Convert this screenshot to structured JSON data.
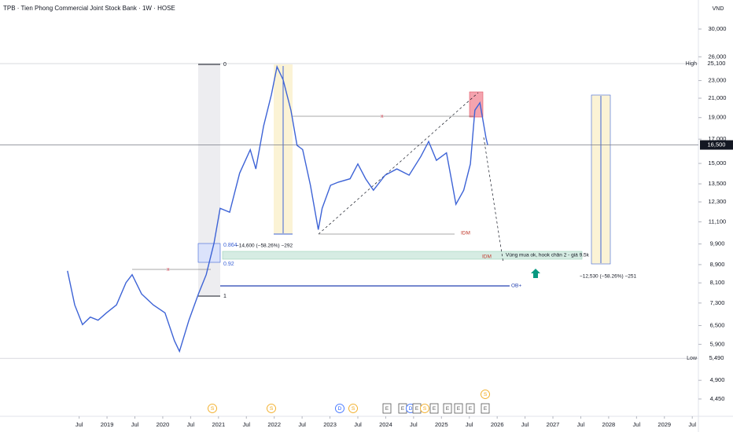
{
  "chart_data": {
    "type": "line",
    "title": "TPB · Tien Phong Commercial Joint Stock Bank · 1W · HOSE",
    "currency": "VND",
    "color": "#3d63d6",
    "log_scale": true,
    "grid": false,
    "x": [
      2018.29,
      2018.42,
      2018.56,
      2018.7,
      2018.84,
      2018.99,
      2019.17,
      2019.34,
      2019.45,
      2019.62,
      2019.83,
      2020.04,
      2020.21,
      2020.3,
      2020.47,
      2020.64,
      2020.78,
      2020.92,
      2021.03,
      2021.2,
      2021.38,
      2021.57,
      2021.67,
      2021.81,
      2021.95,
      2022.05,
      2022.16,
      2022.3,
      2022.41,
      2022.51,
      2022.65,
      2022.79,
      2022.86,
      2023.01,
      2023.15,
      2023.36,
      2023.5,
      2023.64,
      2023.78,
      2023.99,
      2024.2,
      2024.42,
      2024.63,
      2024.77,
      2024.91,
      2025.09,
      2025.19,
      2025.26,
      2025.4,
      2025.52,
      2025.6,
      2025.69,
      2025.8,
      2025.83
    ],
    "values": [
      8620,
      7230,
      6530,
      6790,
      6680,
      6940,
      7230,
      8110,
      8450,
      7650,
      7230,
      6940,
      6010,
      5690,
      6680,
      7650,
      8450,
      9940,
      11900,
      11660,
      14270,
      16100,
      14580,
      18200,
      21400,
      24700,
      23090,
      19740,
      16460,
      16110,
      13400,
      10660,
      11900,
      13400,
      13620,
      13860,
      14960,
      13860,
      13060,
      14120,
      14580,
      14120,
      15550,
      16800,
      15240,
      15840,
      13560,
      12150,
      13060,
      14960,
      19740,
      20510,
      17090,
      16500
    ],
    "xlim": [
      2017.08,
      2029.61
    ],
    "xticks": [
      {
        "value": 2018.5,
        "label": "Jul"
      },
      {
        "value": 2019,
        "label": "2019"
      },
      {
        "value": 2019.5,
        "label": "Jul"
      },
      {
        "value": 2020,
        "label": "2020"
      },
      {
        "value": 2020.5,
        "label": "Jul"
      },
      {
        "value": 2021,
        "label": "2021"
      },
      {
        "value": 2021.5,
        "label": "Jul"
      },
      {
        "value": 2022,
        "label": "2022"
      },
      {
        "value": 2022.5,
        "label": "Jul"
      },
      {
        "value": 2023,
        "label": "2023"
      },
      {
        "value": 2023.5,
        "label": "Jul"
      },
      {
        "value": 2024,
        "label": "2024"
      },
      {
        "value": 2024.5,
        "label": "Jul"
      },
      {
        "value": 2025,
        "label": "2025"
      },
      {
        "value": 2025.5,
        "label": "Jul"
      },
      {
        "value": 2026,
        "label": "2026"
      },
      {
        "value": 2026.5,
        "label": "Jul"
      },
      {
        "value": 2027,
        "label": "2027"
      },
      {
        "value": 2027.5,
        "label": "Jul"
      },
      {
        "value": 2028,
        "label": "2028"
      },
      {
        "value": 2028.5,
        "label": "Jul"
      },
      {
        "value": 2029,
        "label": "2029"
      },
      {
        "value": 2029.5,
        "label": "Jul"
      }
    ],
    "ylim": [
      4070,
      34850
    ],
    "yticks": [
      {
        "value": 4450,
        "label": "4,450"
      },
      {
        "value": 4900,
        "label": "4,900"
      },
      {
        "value": 5900,
        "label": "5,900"
      },
      {
        "value": 6500,
        "label": "6,500"
      },
      {
        "value": 7300,
        "label": "7,300"
      },
      {
        "value": 8100,
        "label": "8,100"
      },
      {
        "value": 8900,
        "label": "8,900"
      },
      {
        "value": 9900,
        "label": "9,900"
      },
      {
        "value": 11100,
        "label": "11,100"
      },
      {
        "value": 12300,
        "label": "12,300"
      },
      {
        "value": 13500,
        "label": "13,500"
      },
      {
        "value": 15000,
        "label": "15,000"
      },
      {
        "value": 17000,
        "label": "17,000"
      },
      {
        "value": 19000,
        "label": "19,000"
      },
      {
        "value": 21000,
        "label": "21,000"
      },
      {
        "value": 23000,
        "label": "23,000"
      },
      {
        "value": 26000,
        "label": "26,000"
      },
      {
        "value": 30000,
        "label": "30,000"
      }
    ],
    "price_lines": [
      {
        "label": "High",
        "value": 25100,
        "value_label": "25,100"
      },
      {
        "value": 16500,
        "value_label": "16,500"
      },
      {
        "label": "Low",
        "value": 5490,
        "value_label": "5,490"
      }
    ],
    "annotations": [
      "0",
      "0.864",
      "0.92",
      "1",
      "x",
      "x",
      "−14,600 (−58.26%) −292",
      "−12,530 (−58.26%) −251",
      "IDM",
      "IDM",
      "OB+",
      "Vùng mua ok, hook chân 2 - giá 9.5k"
    ],
    "events": [
      "S",
      "S",
      "D",
      "S",
      "E",
      "E",
      "D",
      "E",
      "S",
      "E",
      "E",
      "E",
      "E",
      "S",
      "E"
    ]
  }
}
